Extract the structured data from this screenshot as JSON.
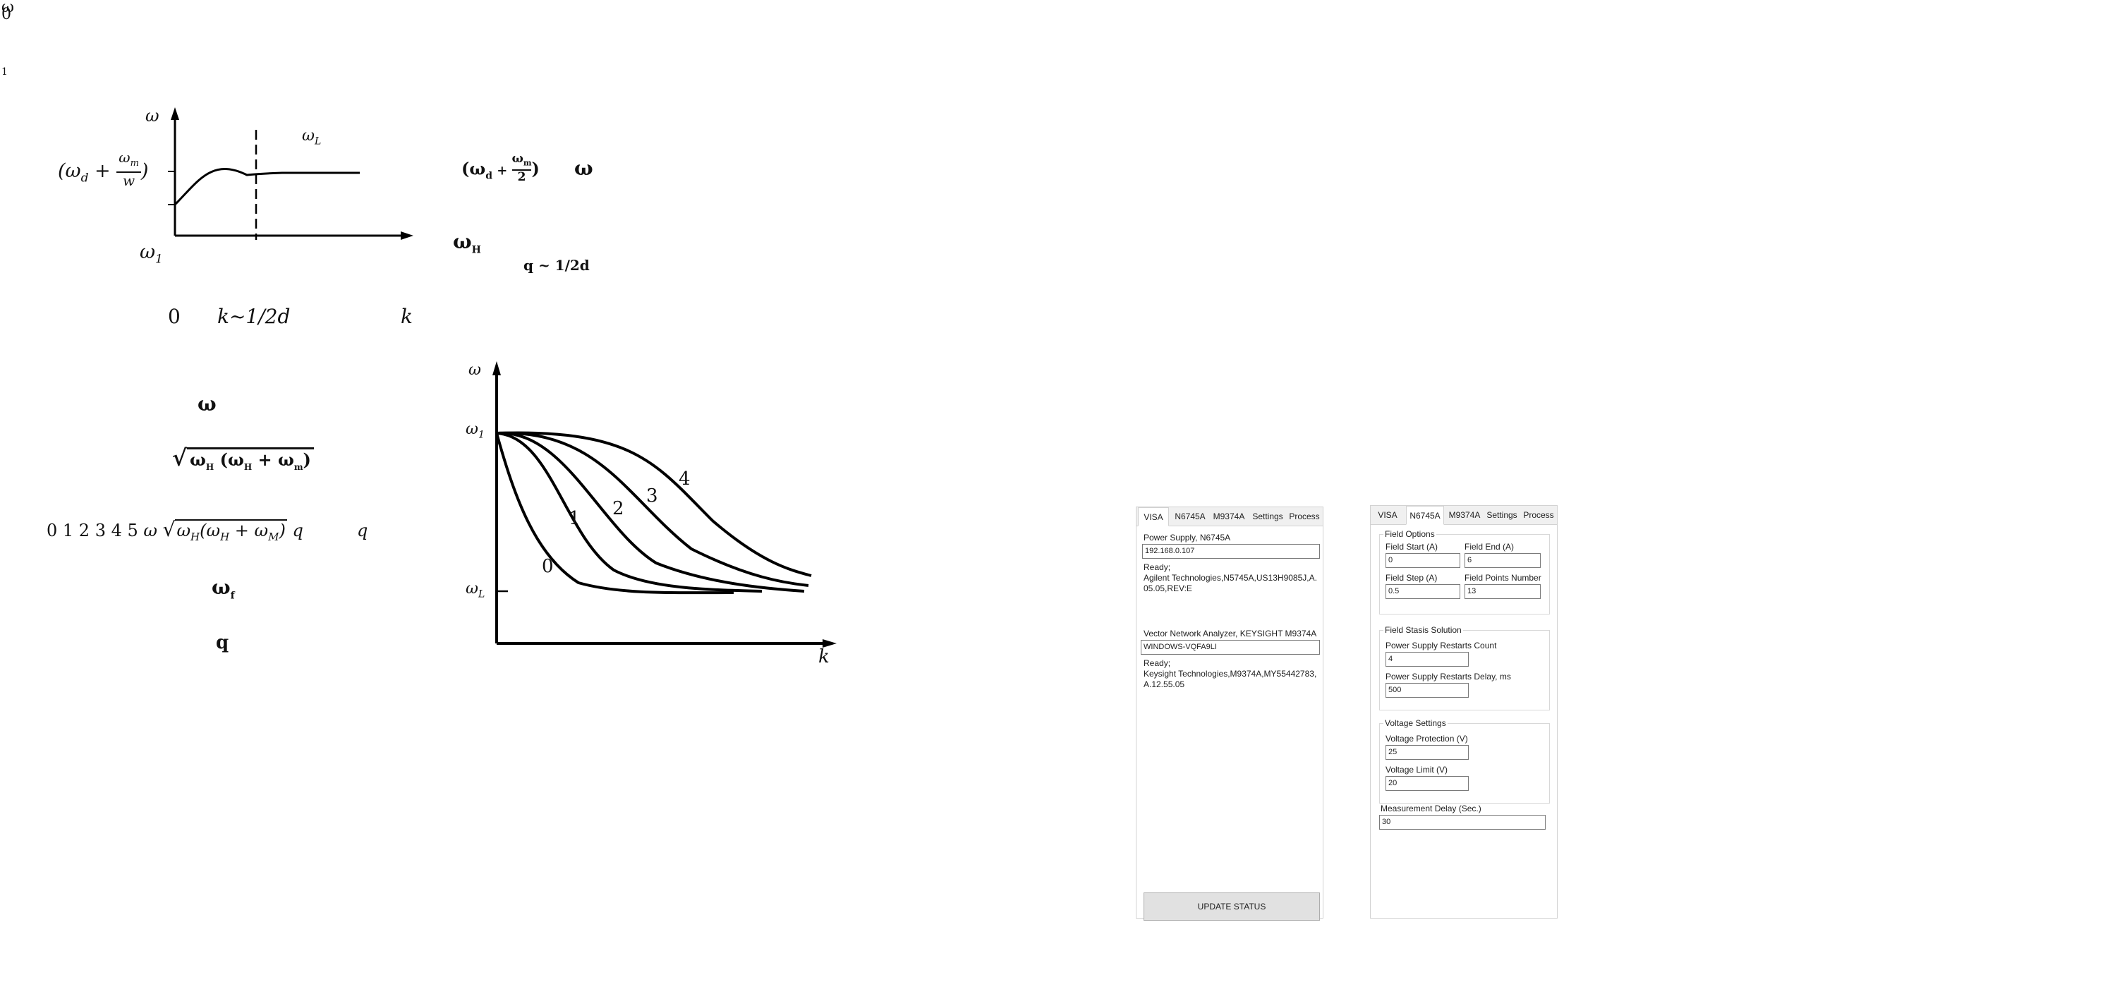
{
  "header": {
    "glyph_top": "ω",
    "glyph_bottom": "0",
    "number": "1"
  },
  "figure1": {
    "y_axis": "ω",
    "x_axis": "k",
    "y_high_prefix": "(ω",
    "y_high_sub": "d",
    "y_high_plus": " + ",
    "y_high_num": "ω",
    "y_high_num_sub": "m",
    "y_high_den": "w",
    "y_high_suffix": ")",
    "y_low": "ω",
    "y_low_sub": "1",
    "x_zero": "0",
    "x_mark": "k~1/2d",
    "curve_label": "ω",
    "curve_label_sub": "L"
  },
  "side_notes": {
    "top_expr_a": "(ω",
    "top_expr_sub": "d",
    "top_expr_b": " + ",
    "top_expr_num": "ω",
    "top_expr_num_sub": "m",
    "top_expr_den": "2",
    "top_expr_c": ")",
    "top_omega": "ω",
    "mid_omega": "ω",
    "mid_omega_sub": "H",
    "q_relation": "q ~ 1/2d"
  },
  "left_notes": {
    "omega": "ω",
    "sqrt_inner_a": "ω",
    "sqrt_inner_a_sub": "H",
    "sqrt_inner_b": "(ω",
    "sqrt_inner_b_sub": "H",
    "sqrt_inner_c": " + ω",
    "sqrt_inner_c_sub": "m",
    "sqrt_inner_d": ")",
    "line_digits": "0 1 2 3 4 5",
    "line_omega": "ω",
    "line_sqrt_a": "ω",
    "line_sqrt_a_sub": "H",
    "line_sqrt_b": "(ω",
    "line_sqrt_b_sub": "H",
    "line_sqrt_c": " + ω",
    "line_sqrt_c_sub": "M",
    "line_sqrt_d": ")",
    "line_q": "q",
    "line_q2": "q",
    "omega_f": "ω",
    "omega_f_sub": "f",
    "q_alone": "q"
  },
  "figure2": {
    "y_axis": "ω",
    "x_axis": "k",
    "y_top": "ω",
    "y_top_sub": "1",
    "y_bottom": "ω",
    "y_bottom_sub": "L",
    "curve_labels": [
      "0",
      "1",
      "2",
      "3",
      "4"
    ]
  },
  "visa_panel": {
    "tabs": [
      "VISA",
      "N6745A",
      "M9374A",
      "Settings",
      "Process"
    ],
    "active_tab": "VISA",
    "power_supply_label": "Power Supply, N6745A",
    "power_supply_address": "192.168.0.107",
    "power_supply_status": "Ready;",
    "power_supply_id": "Agilent Technologies,N5745A,US13H9085J,A.05.05,REV:E",
    "vna_label": "Vector Network Analyzer, KEYSIGHT M9374A",
    "vna_address": "WINDOWS-VQFA9LI",
    "vna_status": "Ready;",
    "vna_id": "Keysight Technologies,M9374A,MY55442783,A.12.55.05",
    "update_button": "UPDATE STATUS"
  },
  "n6745a_panel": {
    "tabs": [
      "VISA",
      "N6745A",
      "M9374A",
      "Settings",
      "Process"
    ],
    "active_tab": "N6745A",
    "field_options_title": "Field Options",
    "field_start_label": "Field Start (A)",
    "field_start_value": "0",
    "field_end_label": "Field End (A)",
    "field_end_value": "6",
    "field_step_label": "Field Step (A)",
    "field_step_value": "0.5",
    "field_points_label": "Field Points Number",
    "field_points_value": "13",
    "stasis_title": "Field Stasis Solution",
    "restarts_count_label": "Power Supply Restarts Count",
    "restarts_count_value": "4",
    "restarts_delay_label": "Power Supply Restarts Delay, ms",
    "restarts_delay_value": "500",
    "voltage_title": "Voltage Settings",
    "voltage_protection_label": "Voltage Protection (V)",
    "voltage_protection_value": "25",
    "voltage_limit_label": "Voltage Limit (V)",
    "voltage_limit_value": "20",
    "measurement_delay_label": "Measurement Delay (Sec.)",
    "measurement_delay_value": "30"
  }
}
